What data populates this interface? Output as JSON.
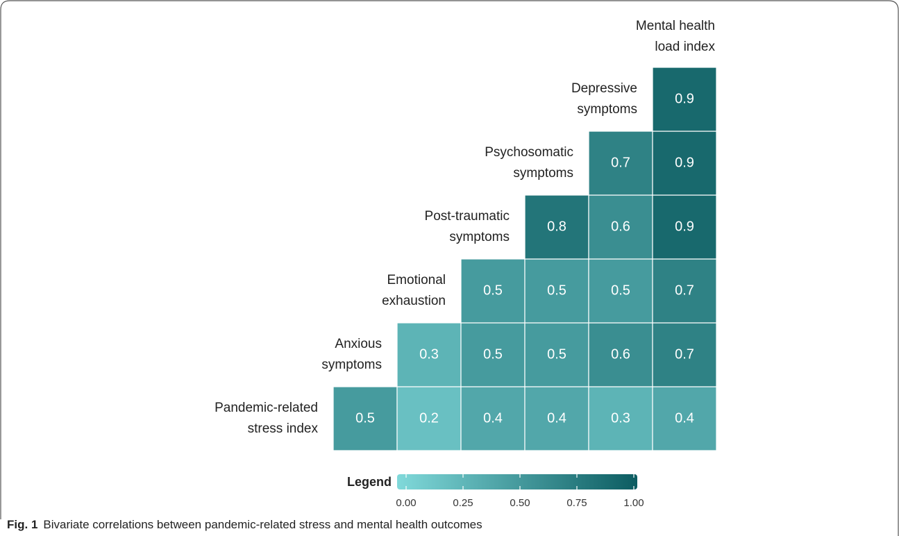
{
  "chart_data": {
    "type": "heatmap",
    "labels": [
      [
        "Pandemic-related",
        "stress index"
      ],
      [
        "Anxious",
        "symptoms"
      ],
      [
        "Emotional",
        "exhaustion"
      ],
      [
        "Post-traumatic",
        "symptoms"
      ],
      [
        "Psychosomatic",
        "symptoms"
      ],
      [
        "Depressive",
        "symptoms"
      ],
      [
        "Mental health",
        "load index"
      ]
    ],
    "values": [
      [
        0.5,
        0.2,
        0.4,
        0.4,
        0.3,
        0.4
      ],
      [
        null,
        0.3,
        0.5,
        0.5,
        0.6,
        0.7
      ],
      [
        null,
        null,
        0.5,
        0.5,
        0.5,
        0.7
      ],
      [
        null,
        null,
        null,
        0.8,
        0.6,
        0.9
      ],
      [
        null,
        null,
        null,
        null,
        0.7,
        0.9
      ],
      [
        null,
        null,
        null,
        null,
        null,
        0.9
      ]
    ],
    "colorscale": [
      "#80d9da",
      "#0c5c61"
    ],
    "clim": [
      0,
      1
    ],
    "legend_title": "Legend",
    "legend_ticks": [
      {
        "value": 0,
        "label": "0.00"
      },
      {
        "value": 0.25,
        "label": "0.25"
      },
      {
        "value": 0.5,
        "label": "0.50"
      },
      {
        "value": 0.75,
        "label": "0.75"
      },
      {
        "value": 1,
        "label": "1.00"
      }
    ],
    "caption_label": "Fig. 1",
    "caption": "Bivariate correlations between pandemic-related stress and mental health outcomes"
  }
}
